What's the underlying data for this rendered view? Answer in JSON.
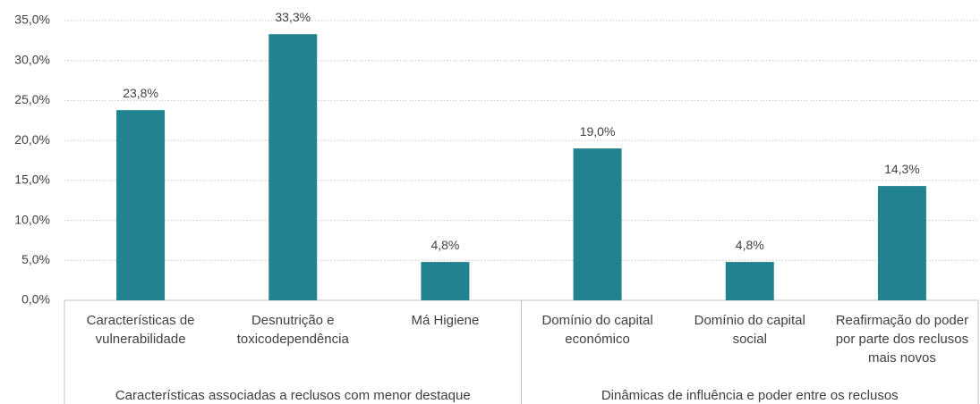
{
  "chart_data": {
    "type": "bar",
    "categories": [
      "Características de vulnerabilidade",
      "Desnutrição e toxicodependência",
      "Má Higiene",
      "Domínio do capital económico",
      "Domínio do capital social",
      "Reafirmação do poder por parte dos reclusos mais novos"
    ],
    "groups": [
      {
        "label": "Características associadas a reclusos com menor destaque",
        "span": 3
      },
      {
        "label": "Dinâmicas de influência e poder entre os reclusos",
        "span": 3
      }
    ],
    "values": [
      23.8,
      33.3,
      4.8,
      19.0,
      4.8,
      14.3
    ],
    "value_labels": [
      "23,8%",
      "33,3%",
      "4,8%",
      "19,0%",
      "4,8%",
      "14,3%"
    ],
    "color": "#21838f",
    "ylim": [
      0,
      35
    ],
    "yticks": [
      {
        "value": 0,
        "label": "0,0%"
      },
      {
        "value": 5,
        "label": "5,0%"
      },
      {
        "value": 10,
        "label": "10,0%"
      },
      {
        "value": 15,
        "label": "15,0%"
      },
      {
        "value": 20,
        "label": "20,0%"
      },
      {
        "value": 25,
        "label": "25,0%"
      },
      {
        "value": 30,
        "label": "30,0%"
      },
      {
        "value": 35,
        "label": "35,0%"
      }
    ],
    "grid": true
  }
}
